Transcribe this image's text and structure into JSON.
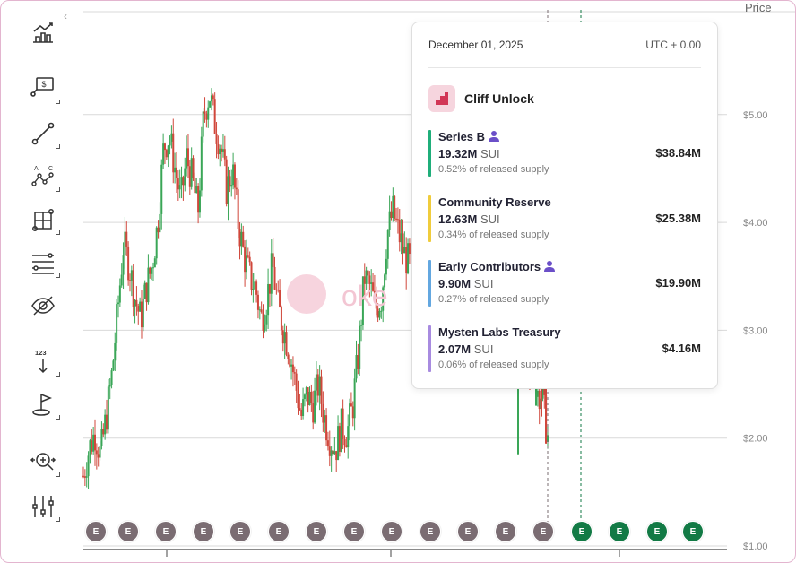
{
  "chart_data": {
    "type": "candlestick",
    "yaxis": {
      "label": "Price",
      "ticks": [
        "$5.00",
        "$4.00",
        "$3.00",
        "$2.00",
        "$1.00"
      ],
      "tick_values": [
        5,
        4,
        3,
        2,
        1
      ],
      "range": [
        1,
        5.5
      ]
    },
    "grid": true,
    "series_close": [
      1.65,
      1.9,
      2.05,
      1.85,
      2.2,
      2.6,
      3.2,
      3.8,
      3.6,
      3.3,
      3.1,
      3.4,
      3.6,
      4.0,
      4.7,
      4.8,
      4.5,
      4.2,
      4.6,
      4.4,
      4.1,
      5.0,
      5.2,
      4.9,
      4.7,
      4.3,
      4.5,
      4.0,
      3.7,
      3.5,
      3.4,
      3.1,
      3.3,
      3.6,
      3.2,
      3.0,
      2.8,
      2.5,
      2.2,
      2.4,
      2.3,
      2.5,
      2.2,
      2.0,
      1.9,
      2.1,
      2.05,
      2.3,
      2.8,
      3.5,
      3.4,
      3.2,
      3.3,
      3.9,
      4.1,
      3.9,
      3.7,
      3.6,
      3.4,
      3.2,
      3.1,
      3.0,
      2.9,
      2.6,
      2.5,
      2.7,
      2.8,
      2.85,
      3.1,
      3.4,
      4.0,
      3.8,
      3.2,
      3.0,
      2.6,
      2.5,
      2.7,
      2.8,
      2.9,
      2.5,
      2.4,
      2.0
    ],
    "events": [
      {
        "label": "E",
        "kind": "past"
      },
      {
        "label": "E",
        "kind": "past"
      },
      {
        "label": "E",
        "kind": "past"
      },
      {
        "label": "E",
        "kind": "past"
      },
      {
        "label": "E",
        "kind": "past"
      },
      {
        "label": "E",
        "kind": "past"
      },
      {
        "label": "E",
        "kind": "past"
      },
      {
        "label": "E",
        "kind": "past"
      },
      {
        "label": "E",
        "kind": "past"
      },
      {
        "label": "E",
        "kind": "past"
      },
      {
        "label": "E",
        "kind": "past"
      },
      {
        "label": "E",
        "kind": "past"
      },
      {
        "label": "E",
        "kind": "past"
      },
      {
        "label": "E",
        "kind": "future"
      },
      {
        "label": "E",
        "kind": "future"
      },
      {
        "label": "E",
        "kind": "future"
      },
      {
        "label": "E",
        "kind": "future"
      }
    ]
  },
  "colors": {
    "up": "#3aa657",
    "down": "#d0473b",
    "past_marker": "#7a6c72",
    "future_marker": "#127a45",
    "accent": "#e0567e"
  },
  "tooltip": {
    "date": "December 01, 2025",
    "timezone": "UTC + 0.00",
    "event_title": "Cliff Unlock",
    "allocations": [
      {
        "name": "Series B",
        "amount": "19.32M",
        "token": "SUI",
        "pct": "0.52% of released supply",
        "value": "$38.84M",
        "color": "#1fae7a",
        "has_icon": true
      },
      {
        "name": "Community Reserve",
        "amount": "12.63M",
        "token": "SUI",
        "pct": "0.34% of released supply",
        "value": "$25.38M",
        "color": "#f0cc3c",
        "has_icon": false
      },
      {
        "name": "Early Contributors",
        "amount": "9.90M",
        "token": "SUI",
        "pct": "0.27% of released supply",
        "value": "$19.90M",
        "color": "#63a7e0",
        "has_icon": true
      },
      {
        "name": "Mysten Labs Treasury",
        "amount": "2.07M",
        "token": "SUI",
        "pct": "0.06% of released supply",
        "value": "$4.16M",
        "color": "#a88be0",
        "has_icon": false
      }
    ]
  },
  "toolbar": {
    "items": [
      {
        "name": "chart-type-icon"
      },
      {
        "name": "price-annotation-icon"
      },
      {
        "name": "trend-line-icon"
      },
      {
        "name": "pattern-icon"
      },
      {
        "name": "measure-box-icon"
      },
      {
        "name": "fib-lines-icon"
      },
      {
        "name": "hide-drawings-icon"
      },
      {
        "name": "numeric-label-icon"
      },
      {
        "name": "flag-icon"
      },
      {
        "name": "zoom-icon"
      },
      {
        "name": "indicators-icon"
      }
    ],
    "numeric_label": "123"
  },
  "watermark": {
    "text": "oke"
  }
}
